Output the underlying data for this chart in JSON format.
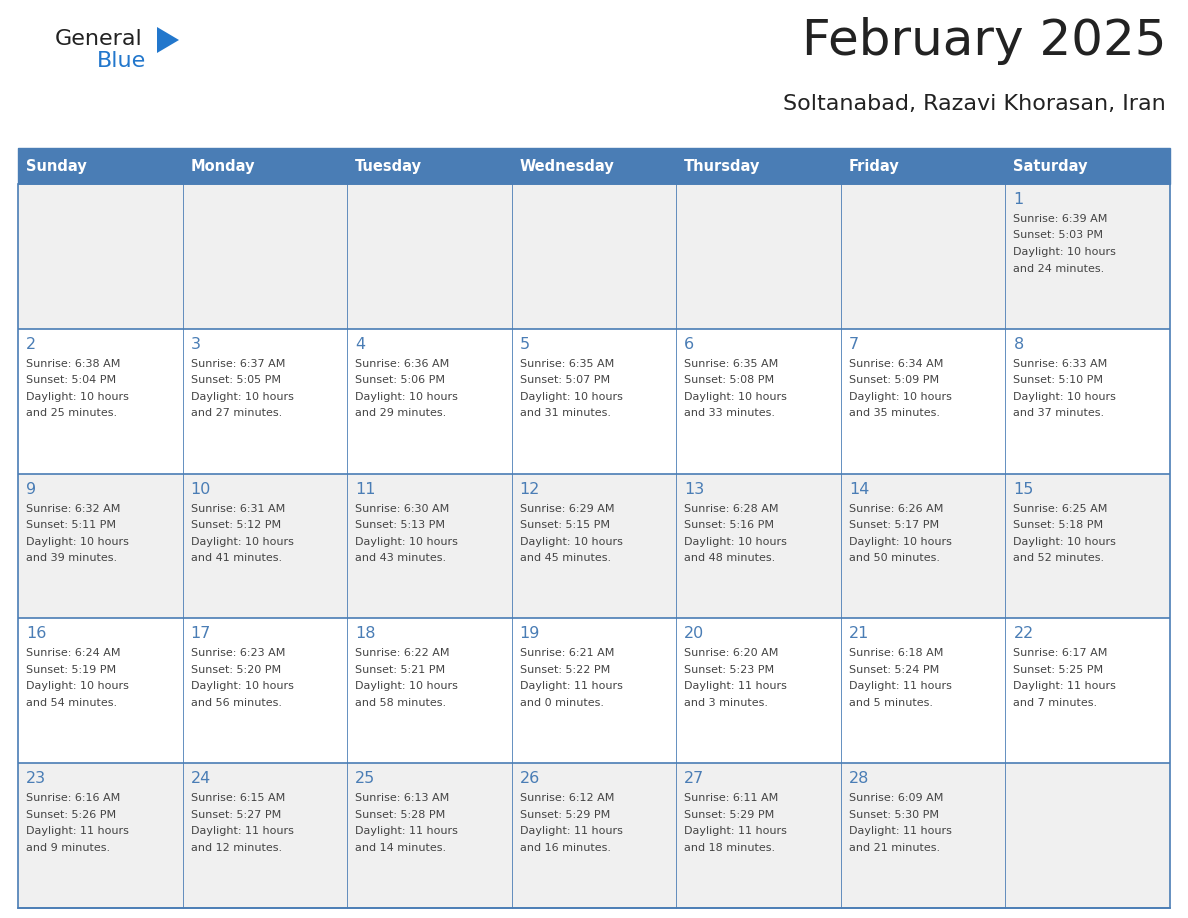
{
  "title": "February 2025",
  "subtitle": "Soltanabad, Razavi Khorasan, Iran",
  "days_of_week": [
    "Sunday",
    "Monday",
    "Tuesday",
    "Wednesday",
    "Thursday",
    "Friday",
    "Saturday"
  ],
  "header_bg": "#4a7db5",
  "header_text": "#ffffff",
  "row_bg_odd": "#f0f0f0",
  "row_bg_even": "#ffffff",
  "cell_border": "#4a7db5",
  "day_number_color": "#4a7db5",
  "info_text_color": "#444444",
  "title_color": "#222222",
  "subtitle_color": "#222222",
  "logo_general_color": "#222222",
  "logo_blue_color": "#2277cc",
  "calendar_data": [
    [
      null,
      null,
      null,
      null,
      null,
      null,
      {
        "day": 1,
        "sunrise": "6:39 AM",
        "sunset": "5:03 PM",
        "daylight_hours": 10,
        "daylight_minutes": 24
      }
    ],
    [
      {
        "day": 2,
        "sunrise": "6:38 AM",
        "sunset": "5:04 PM",
        "daylight_hours": 10,
        "daylight_minutes": 25
      },
      {
        "day": 3,
        "sunrise": "6:37 AM",
        "sunset": "5:05 PM",
        "daylight_hours": 10,
        "daylight_minutes": 27
      },
      {
        "day": 4,
        "sunrise": "6:36 AM",
        "sunset": "5:06 PM",
        "daylight_hours": 10,
        "daylight_minutes": 29
      },
      {
        "day": 5,
        "sunrise": "6:35 AM",
        "sunset": "5:07 PM",
        "daylight_hours": 10,
        "daylight_minutes": 31
      },
      {
        "day": 6,
        "sunrise": "6:35 AM",
        "sunset": "5:08 PM",
        "daylight_hours": 10,
        "daylight_minutes": 33
      },
      {
        "day": 7,
        "sunrise": "6:34 AM",
        "sunset": "5:09 PM",
        "daylight_hours": 10,
        "daylight_minutes": 35
      },
      {
        "day": 8,
        "sunrise": "6:33 AM",
        "sunset": "5:10 PM",
        "daylight_hours": 10,
        "daylight_minutes": 37
      }
    ],
    [
      {
        "day": 9,
        "sunrise": "6:32 AM",
        "sunset": "5:11 PM",
        "daylight_hours": 10,
        "daylight_minutes": 39
      },
      {
        "day": 10,
        "sunrise": "6:31 AM",
        "sunset": "5:12 PM",
        "daylight_hours": 10,
        "daylight_minutes": 41
      },
      {
        "day": 11,
        "sunrise": "6:30 AM",
        "sunset": "5:13 PM",
        "daylight_hours": 10,
        "daylight_minutes": 43
      },
      {
        "day": 12,
        "sunrise": "6:29 AM",
        "sunset": "5:15 PM",
        "daylight_hours": 10,
        "daylight_minutes": 45
      },
      {
        "day": 13,
        "sunrise": "6:28 AM",
        "sunset": "5:16 PM",
        "daylight_hours": 10,
        "daylight_minutes": 48
      },
      {
        "day": 14,
        "sunrise": "6:26 AM",
        "sunset": "5:17 PM",
        "daylight_hours": 10,
        "daylight_minutes": 50
      },
      {
        "day": 15,
        "sunrise": "6:25 AM",
        "sunset": "5:18 PM",
        "daylight_hours": 10,
        "daylight_minutes": 52
      }
    ],
    [
      {
        "day": 16,
        "sunrise": "6:24 AM",
        "sunset": "5:19 PM",
        "daylight_hours": 10,
        "daylight_minutes": 54
      },
      {
        "day": 17,
        "sunrise": "6:23 AM",
        "sunset": "5:20 PM",
        "daylight_hours": 10,
        "daylight_minutes": 56
      },
      {
        "day": 18,
        "sunrise": "6:22 AM",
        "sunset": "5:21 PM",
        "daylight_hours": 10,
        "daylight_minutes": 58
      },
      {
        "day": 19,
        "sunrise": "6:21 AM",
        "sunset": "5:22 PM",
        "daylight_hours": 11,
        "daylight_minutes": 0
      },
      {
        "day": 20,
        "sunrise": "6:20 AM",
        "sunset": "5:23 PM",
        "daylight_hours": 11,
        "daylight_minutes": 3
      },
      {
        "day": 21,
        "sunrise": "6:18 AM",
        "sunset": "5:24 PM",
        "daylight_hours": 11,
        "daylight_minutes": 5
      },
      {
        "day": 22,
        "sunrise": "6:17 AM",
        "sunset": "5:25 PM",
        "daylight_hours": 11,
        "daylight_minutes": 7
      }
    ],
    [
      {
        "day": 23,
        "sunrise": "6:16 AM",
        "sunset": "5:26 PM",
        "daylight_hours": 11,
        "daylight_minutes": 9
      },
      {
        "day": 24,
        "sunrise": "6:15 AM",
        "sunset": "5:27 PM",
        "daylight_hours": 11,
        "daylight_minutes": 12
      },
      {
        "day": 25,
        "sunrise": "6:13 AM",
        "sunset": "5:28 PM",
        "daylight_hours": 11,
        "daylight_minutes": 14
      },
      {
        "day": 26,
        "sunrise": "6:12 AM",
        "sunset": "5:29 PM",
        "daylight_hours": 11,
        "daylight_minutes": 16
      },
      {
        "day": 27,
        "sunrise": "6:11 AM",
        "sunset": "5:29 PM",
        "daylight_hours": 11,
        "daylight_minutes": 18
      },
      {
        "day": 28,
        "sunrise": "6:09 AM",
        "sunset": "5:30 PM",
        "daylight_hours": 11,
        "daylight_minutes": 21
      },
      null
    ]
  ]
}
